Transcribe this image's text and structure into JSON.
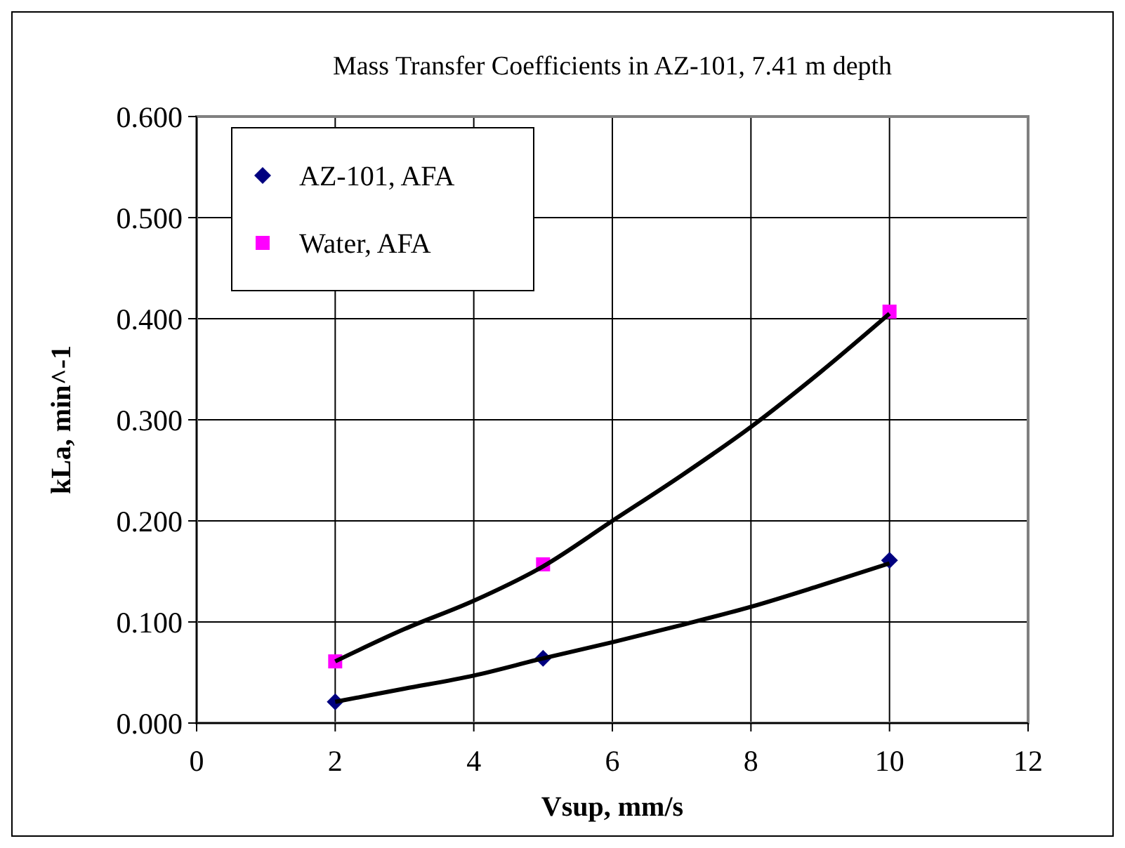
{
  "chart_data": {
    "type": "scatter",
    "title": "Mass Transfer Coefficients in AZ-101, 7.41 m depth",
    "xlabel": "Vsup, mm/s",
    "ylabel": "kLa, min^-1",
    "x": [
      2,
      5,
      10
    ],
    "series": [
      {
        "name": "AZ-101, AFA",
        "color": "#000080",
        "marker": "diamond",
        "values": [
          0.021,
          0.064,
          0.161
        ]
      },
      {
        "name": "Water, AFA",
        "color": "#ff00ff",
        "marker": "square",
        "values": [
          0.061,
          0.157,
          0.407
        ]
      },
      {
        "type": "line",
        "color": "#000000",
        "marker": "none",
        "x": [
          2,
          3,
          4,
          5,
          6,
          7,
          8,
          9,
          10
        ],
        "values": [
          0.021,
          0.034,
          0.047,
          0.064,
          0.08,
          0.097,
          0.115,
          0.136,
          0.158
        ]
      },
      {
        "type": "line",
        "color": "#000000",
        "marker": "none",
        "x": [
          2,
          3,
          4,
          5,
          6,
          7,
          8,
          9,
          10
        ],
        "values": [
          0.061,
          0.093,
          0.121,
          0.155,
          0.2,
          0.245,
          0.293,
          0.347,
          0.405
        ]
      }
    ],
    "xlim": [
      0,
      12
    ],
    "xticks": [
      0,
      2,
      4,
      6,
      8,
      10,
      12
    ],
    "ylim": [
      0,
      0.6
    ],
    "yticks": [
      {
        "value": 0,
        "label": "0.000"
      },
      {
        "value": 0.1,
        "label": "0.100"
      },
      {
        "value": 0.2,
        "label": "0.200"
      },
      {
        "value": 0.3,
        "label": "0.300"
      },
      {
        "value": 0.4,
        "label": "0.400"
      },
      {
        "value": 0.5,
        "label": "0.500"
      },
      {
        "value": 0.6,
        "label": "0.600"
      }
    ],
    "grid": true,
    "legend": "top left"
  }
}
